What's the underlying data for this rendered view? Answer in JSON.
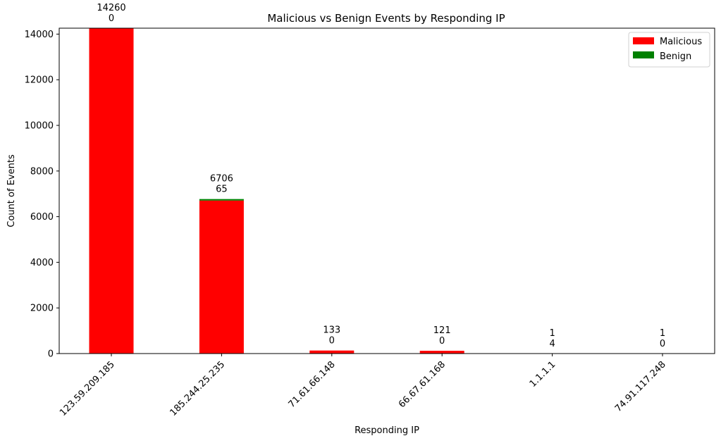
{
  "chart_data": {
    "type": "bar",
    "stacked": true,
    "title": "Malicious vs Benign Events by Responding IP",
    "xlabel": "Responding IP",
    "ylabel": "Count of Events",
    "categories": [
      "123.59.209.185",
      "185.244.25.235",
      "71.61.66.148",
      "66.67.61.168",
      "1.1.1.1",
      "74.91.117.248"
    ],
    "series": [
      {
        "name": "Malicious",
        "color": "#ff0000",
        "values": [
          14260,
          6706,
          133,
          121,
          1,
          1
        ]
      },
      {
        "name": "Benign",
        "color": "#008000",
        "values": [
          0,
          65,
          0,
          0,
          4,
          0
        ]
      }
    ],
    "ylim": [
      0,
      14260
    ],
    "yticks": [
      0,
      2000,
      4000,
      6000,
      8000,
      10000,
      12000,
      14000
    ],
    "legend_position": "top-right",
    "grid": false,
    "data_labels": true
  }
}
